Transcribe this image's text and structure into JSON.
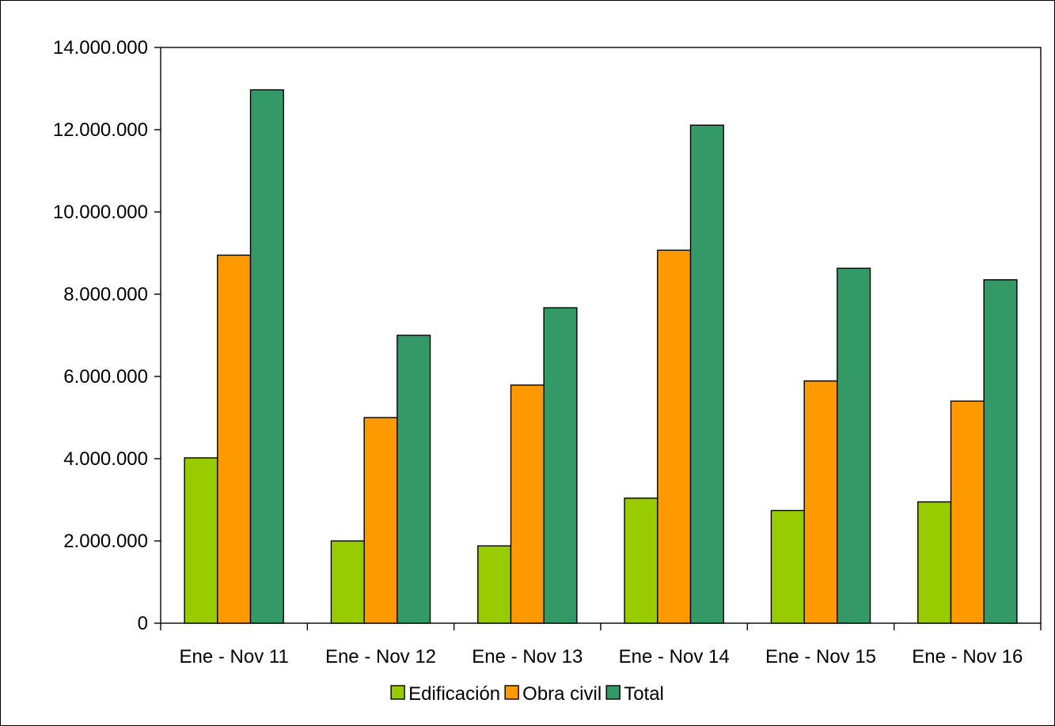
{
  "chart_data": {
    "type": "bar",
    "categories": [
      "Ene - Nov 11",
      "Ene - Nov 12",
      "Ene - Nov 13",
      "Ene - Nov 14",
      "Ene - Nov 15",
      "Ene - Nov 16"
    ],
    "series": [
      {
        "name": "Edificación",
        "color": "#99CC00",
        "values": [
          4020000,
          2000000,
          1880000,
          3040000,
          2740000,
          2950000
        ]
      },
      {
        "name": "Obra civil",
        "color": "#FF9900",
        "values": [
          8950000,
          5000000,
          5790000,
          9070000,
          5890000,
          5400000
        ]
      },
      {
        "name": "Total",
        "color": "#339966",
        "values": [
          12970000,
          7000000,
          7670000,
          12110000,
          8630000,
          8350000
        ]
      }
    ],
    "ylim": [
      0,
      14000000
    ],
    "yticks": [
      0,
      2000000,
      4000000,
      6000000,
      8000000,
      10000000,
      12000000,
      14000000
    ],
    "ytick_labels": [
      "0",
      "2.000.000",
      "4.000.000",
      "6.000.000",
      "8.000.000",
      "10.000.000",
      "12.000.000",
      "14.000.000"
    ],
    "grid": false,
    "legend_position": "bottom"
  }
}
